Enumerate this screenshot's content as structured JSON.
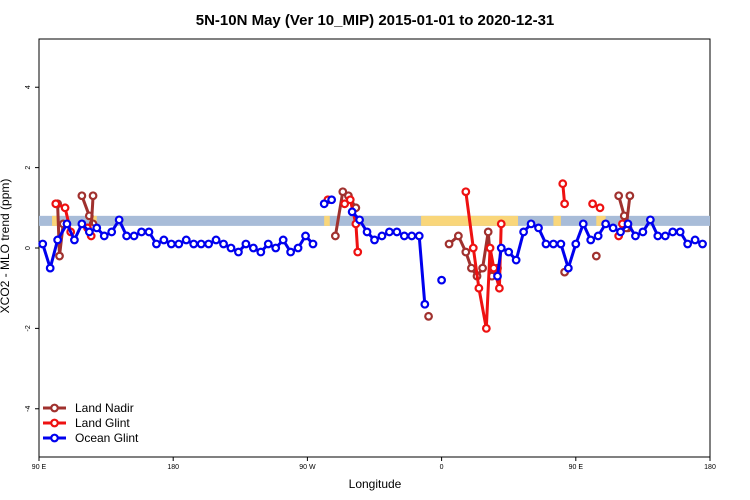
{
  "chart_data": {
    "type": "line",
    "title": "5N-10N May (Ver 10_MIP)   2015-01-01 to 2020-12-31",
    "xlabel": "Longitude",
    "ylabel": "XCO2 - MLO trend (ppm)",
    "xlim": [
      0,
      360
    ],
    "ylim": [
      -5.2,
      5.2
    ],
    "x_ticks": [
      {
        "value": 0,
        "label": "90 E"
      },
      {
        "value": 72,
        "label": "180"
      },
      {
        "value": 144,
        "label": "90 W"
      },
      {
        "value": 216,
        "label": "0"
      },
      {
        "value": 288,
        "label": "90 E"
      },
      {
        "value": 360,
        "label": "180"
      }
    ],
    "y_ticks": [
      -4,
      -2,
      0,
      2,
      4
    ],
    "grid": false,
    "legend_position": "bottom-left",
    "band": {
      "ymin": 0.55,
      "ymax": 0.8,
      "color": "#a8bcd8",
      "land_color": "#f9d67a"
    },
    "land_segments": [
      [
        7,
        10
      ],
      [
        27,
        31
      ],
      [
        153,
        156
      ],
      [
        205,
        257
      ],
      [
        276,
        280
      ],
      [
        299,
        304
      ]
    ],
    "series": [
      {
        "name": "Land Nadir",
        "color": "#a0312e",
        "segments": [
          [
            [
              10,
              1.1
            ],
            [
              11,
              -0.2
            ],
            [
              13,
              0.6
            ]
          ],
          [
            [
              23,
              1.3
            ],
            [
              27,
              0.8
            ],
            [
              29,
              0.6
            ]
          ],
          [
            [
              29,
              1.3
            ],
            [
              28,
              0.5
            ]
          ],
          [
            [
              159,
              0.3
            ],
            [
              163,
              1.4
            ],
            [
              166,
              1.3
            ],
            [
              170,
              1.0
            ]
          ],
          [
            [
              209,
              -1.7
            ]
          ],
          [
            [
              220,
              0.1
            ],
            [
              225,
              0.3
            ],
            [
              229,
              -0.1
            ],
            [
              232,
              -0.5
            ],
            [
              235,
              -0.7
            ],
            [
              238,
              -0.5
            ],
            [
              241,
              0.4
            ],
            [
              243,
              -0.7
            ],
            [
              246,
              -0.5
            ]
          ],
          [
            [
              282,
              -0.6
            ]
          ],
          [
            [
              299,
              -0.2
            ]
          ],
          [
            [
              311,
              1.3
            ],
            [
              314,
              0.8
            ],
            [
              316,
              0.5
            ]
          ],
          [
            [
              317,
              1.3
            ],
            [
              315,
              0.5
            ]
          ]
        ]
      },
      {
        "name": "Land Glint",
        "color": "#ee1111",
        "segments": [
          [
            [
              9,
              1.1
            ],
            [
              14,
              1.0
            ],
            [
              17,
              0.4
            ]
          ],
          [
            [
              26,
              0.5
            ],
            [
              28,
              0.3
            ]
          ],
          [
            [
              155,
              1.2
            ]
          ],
          [
            [
              164,
              1.1
            ],
            [
              167,
              1.2
            ],
            [
              170,
              0.6
            ],
            [
              171,
              -0.1
            ]
          ],
          [
            [
              229,
              1.4
            ],
            [
              233,
              0.0
            ],
            [
              236,
              -1.0
            ],
            [
              240,
              -2.0
            ],
            [
              242,
              0.0
            ],
            [
              244,
              -0.5
            ],
            [
              247,
              -1.0
            ],
            [
              248,
              0.6
            ]
          ],
          [
            [
              281,
              1.6
            ],
            [
              282,
              1.1
            ]
          ],
          [
            [
              297,
              1.1
            ],
            [
              301,
              1.0
            ]
          ],
          [
            [
              311,
              0.3
            ],
            [
              313,
              0.6
            ]
          ]
        ]
      },
      {
        "name": "Ocean Glint",
        "color": "#0000ee",
        "segments": [
          [
            [
              2,
              0.1
            ],
            [
              6,
              -0.5
            ],
            [
              10,
              0.2
            ],
            [
              15,
              0.6
            ],
            [
              19,
              0.2
            ],
            [
              23,
              0.6
            ],
            [
              27,
              0.4
            ],
            [
              31,
              0.5
            ],
            [
              35,
              0.3
            ],
            [
              39,
              0.4
            ],
            [
              43,
              0.7
            ],
            [
              47,
              0.3
            ],
            [
              51,
              0.3
            ],
            [
              55,
              0.4
            ],
            [
              59,
              0.4
            ],
            [
              63,
              0.1
            ],
            [
              67,
              0.2
            ],
            [
              71,
              0.1
            ],
            [
              75,
              0.1
            ],
            [
              79,
              0.2
            ],
            [
              83,
              0.1
            ],
            [
              87,
              0.1
            ],
            [
              91,
              0.1
            ],
            [
              95,
              0.2
            ],
            [
              99,
              0.1
            ],
            [
              103,
              0.0
            ],
            [
              107,
              -0.1
            ],
            [
              111,
              0.1
            ],
            [
              115,
              -0.0
            ],
            [
              119,
              -0.1
            ],
            [
              123,
              0.1
            ],
            [
              127,
              0.0
            ],
            [
              131,
              0.2
            ],
            [
              135,
              -0.1
            ],
            [
              139,
              -0.0
            ],
            [
              143,
              0.3
            ],
            [
              147,
              0.1
            ]
          ],
          [
            [
              153,
              1.1
            ],
            [
              157,
              1.2
            ]
          ],
          [
            [
              168,
              0.9
            ],
            [
              172,
              0.7
            ],
            [
              176,
              0.4
            ],
            [
              180,
              0.2
            ],
            [
              184,
              0.3
            ],
            [
              188,
              0.4
            ],
            [
              192,
              0.4
            ],
            [
              196,
              0.3
            ],
            [
              200,
              0.3
            ],
            [
              204,
              0.3
            ],
            [
              207,
              -1.4
            ]
          ],
          [
            [
              216,
              -0.8
            ]
          ],
          [
            [
              246,
              -0.7
            ],
            [
              248,
              0.0
            ],
            [
              252,
              -0.1
            ],
            [
              256,
              -0.3
            ],
            [
              260,
              0.4
            ],
            [
              264,
              0.6
            ],
            [
              268,
              0.5
            ],
            [
              272,
              0.1
            ],
            [
              276,
              0.1
            ],
            [
              280,
              0.1
            ],
            [
              284,
              -0.5
            ],
            [
              288,
              0.1
            ],
            [
              292,
              0.6
            ],
            [
              296,
              0.2
            ],
            [
              300,
              0.3
            ],
            [
              304,
              0.6
            ],
            [
              308,
              0.5
            ],
            [
              312,
              0.4
            ],
            [
              316,
              0.6
            ],
            [
              320,
              0.3
            ],
            [
              324,
              0.4
            ],
            [
              328,
              0.7
            ],
            [
              332,
              0.3
            ],
            [
              336,
              0.3
            ],
            [
              340,
              0.4
            ],
            [
              344,
              0.4
            ],
            [
              348,
              0.1
            ],
            [
              352,
              0.2
            ],
            [
              356,
              0.1
            ]
          ]
        ]
      }
    ]
  }
}
